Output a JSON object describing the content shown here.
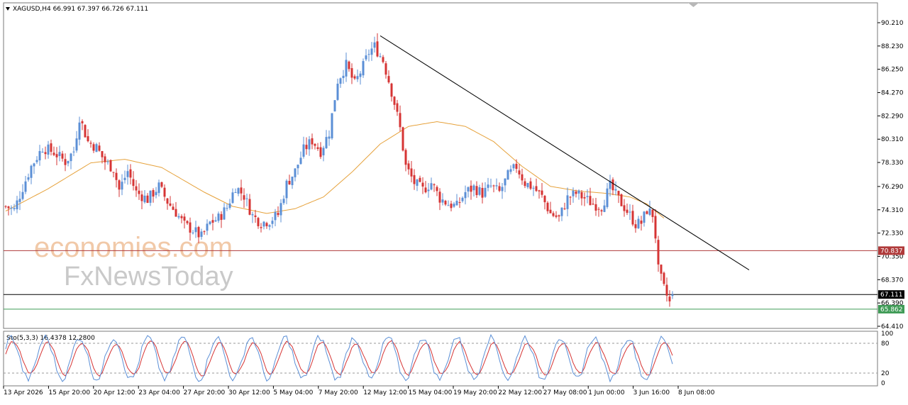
{
  "header": {
    "symbol_line": "XAGUSD,H4  66.991 67.397 66.726 67.111"
  },
  "watermark": {
    "line1": "economies.com",
    "line2": "FxNewsToday"
  },
  "stochastic": {
    "label": "Sto(5,3,3) 16.4378 12.2800",
    "scale_labels": [
      "100",
      "80",
      "20",
      "0"
    ],
    "levels": [
      80,
      20
    ],
    "main_color": "#5b8fd6",
    "signal_color": "#d63434"
  },
  "chart_data": {
    "type": "candlestick",
    "symbol": "XAGUSD",
    "timeframe": "H4",
    "ohlc_current": {
      "open": 66.991,
      "high": 67.397,
      "low": 66.726,
      "close": 67.111
    },
    "y_ticks": [
      "90.210",
      "88.230",
      "86.250",
      "84.270",
      "82.290",
      "80.310",
      "78.330",
      "76.290",
      "74.310",
      "72.330",
      "70.350",
      "68.370",
      "66.390",
      "64.410"
    ],
    "ylim": [
      63.5,
      91.7
    ],
    "x_labels": [
      "13 Apr 2026",
      "15 Apr 20:00",
      "20 Apr 12:00",
      "23 Apr 04:00",
      "27 Apr 20:00",
      "30 Apr 12:00",
      "5 May 04:00",
      "7 May 20:00",
      "12 May 12:00",
      "15 May 04:00",
      "19 May 20:00",
      "22 May 12:00",
      "27 May 08:00",
      "1 Jun 00:00",
      "3 Jun 16:00",
      "8 Jun 08:00"
    ],
    "price_anchors": [
      [
        0,
        74.6
      ],
      [
        3,
        74.3
      ],
      [
        6,
        76.2
      ],
      [
        9,
        78.0
      ],
      [
        13,
        79.6
      ],
      [
        17,
        79.2
      ],
      [
        21,
        78.4
      ],
      [
        24,
        79.3
      ],
      [
        26,
        82.2
      ],
      [
        29,
        80.1
      ],
      [
        32,
        79.6
      ],
      [
        35,
        78.4
      ],
      [
        38,
        77.8
      ],
      [
        40,
        76.0
      ],
      [
        43,
        77.6
      ],
      [
        46,
        75.8
      ],
      [
        50,
        75.2
      ],
      [
        54,
        76.3
      ],
      [
        57,
        75.0
      ],
      [
        60,
        74.1
      ],
      [
        63,
        73.0
      ],
      [
        66,
        72.6
      ],
      [
        69,
        72.0
      ],
      [
        72,
        73.2
      ],
      [
        75,
        73.6
      ],
      [
        78,
        74.5
      ],
      [
        81,
        76.3
      ],
      [
        84,
        75.5
      ],
      [
        87,
        73.8
      ],
      [
        90,
        73.2
      ],
      [
        93,
        73.4
      ],
      [
        96,
        73.9
      ],
      [
        99,
        76.5
      ],
      [
        102,
        77.6
      ],
      [
        105,
        79.4
      ],
      [
        108,
        80.2
      ],
      [
        111,
        79.3
      ],
      [
        114,
        80.9
      ],
      [
        117,
        85.3
      ],
      [
        120,
        86.6
      ],
      [
        123,
        85.0
      ],
      [
        126,
        86.5
      ],
      [
        128,
        87.7
      ],
      [
        130,
        88.2
      ],
      [
        133,
        87.0
      ],
      [
        135,
        85.3
      ],
      [
        137,
        83.4
      ],
      [
        139,
        81.2
      ],
      [
        141,
        78.0
      ],
      [
        144,
        76.6
      ],
      [
        147,
        76.0
      ],
      [
        150,
        76.6
      ],
      [
        153,
        75.3
      ],
      [
        156,
        74.8
      ],
      [
        159,
        74.6
      ],
      [
        162,
        75.8
      ],
      [
        165,
        76.2
      ],
      [
        168,
        75.7
      ],
      [
        171,
        76.3
      ],
      [
        174,
        75.8
      ],
      [
        177,
        77.2
      ],
      [
        180,
        78.0
      ],
      [
        183,
        76.6
      ],
      [
        186,
        76.2
      ],
      [
        189,
        75.4
      ],
      [
        192,
        74.0
      ],
      [
        195,
        73.6
      ],
      [
        198,
        75.3
      ],
      [
        201,
        75.7
      ],
      [
        204,
        75.3
      ],
      [
        207,
        74.8
      ],
      [
        210,
        74.6
      ],
      [
        213,
        76.3
      ],
      [
        216,
        75.2
      ],
      [
        219,
        74.2
      ],
      [
        222,
        73.1
      ],
      [
        224,
        73.2
      ],
      [
        226,
        74.3
      ],
      [
        228,
        73.9
      ],
      [
        229,
        72.1
      ],
      [
        230,
        69.2
      ],
      [
        232,
        67.6
      ],
      [
        234,
        66.4
      ],
      [
        235,
        67.1
      ]
    ],
    "ma_anchors": [
      [
        0,
        74.2
      ],
      [
        15,
        76.1
      ],
      [
        30,
        78.3
      ],
      [
        42,
        78.6
      ],
      [
        55,
        77.9
      ],
      [
        70,
        75.8
      ],
      [
        80,
        74.6
      ],
      [
        92,
        74.0
      ],
      [
        102,
        74.4
      ],
      [
        112,
        75.4
      ],
      [
        122,
        77.5
      ],
      [
        132,
        79.9
      ],
      [
        142,
        81.4
      ],
      [
        152,
        81.8
      ],
      [
        162,
        81.4
      ],
      [
        172,
        80.1
      ],
      [
        182,
        78.0
      ],
      [
        192,
        76.3
      ],
      [
        202,
        75.9
      ],
      [
        212,
        75.7
      ],
      [
        220,
        75.4
      ],
      [
        226,
        74.8
      ],
      [
        232,
        73.6
      ]
    ],
    "trendline": {
      "from": [
        132,
        89.1
      ],
      "to": [
        262,
        69.2
      ]
    },
    "horizontal_lines": [
      {
        "price": 70.837,
        "label": "70.837",
        "color": "#b03a3a"
      },
      {
        "price": 67.111,
        "label": "67.111",
        "color": "#000000"
      },
      {
        "price": 65.862,
        "label": "65.862",
        "color": "#3f9b56"
      }
    ]
  }
}
